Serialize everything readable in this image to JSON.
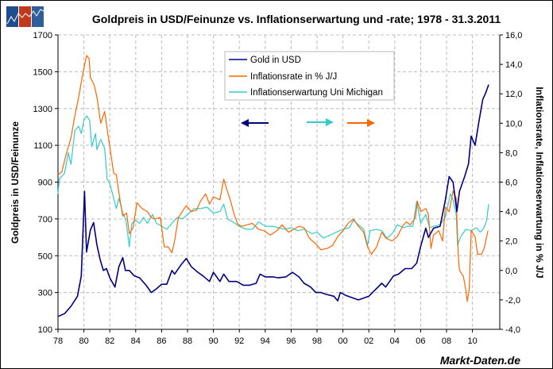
{
  "logo": {
    "text": "Markt-Daten.de logo",
    "colors": [
      "#1f4e8c",
      "#c0391b",
      "#2f5f9a"
    ]
  },
  "watermark": "Markt-Daten.de",
  "chart_data": {
    "type": "line",
    "title": "Goldpreis in USD/Feinunze vs. Inflationserwartung und -rate; 1978 - 31.3.2011",
    "xlabel": "",
    "ylabel_left": "Goldpreis in USD/Feinunze",
    "ylabel_right": "Inflationsrate, Inflationserwartung in % J/J",
    "xlim": [
      1978,
      2012
    ],
    "ylim_left": [
      100,
      1700
    ],
    "ylim_right": [
      -4,
      16
    ],
    "x_ticks": [
      "78",
      "80",
      "82",
      "84",
      "86",
      "88",
      "90",
      "92",
      "94",
      "96",
      "98",
      "00",
      "02",
      "04",
      "06",
      "08",
      "10"
    ],
    "y_ticks_left": [
      "100",
      "300",
      "500",
      "700",
      "900",
      "1100",
      "1300",
      "1500",
      "1700"
    ],
    "y_ticks_right": [
      "-4,0",
      "-2,0",
      "0,0",
      "2,0",
      "4,0",
      "6,0",
      "8,0",
      "10,0",
      "12,0",
      "14,0",
      "16,0"
    ],
    "grid": true,
    "legend_position": "top-center",
    "series": [
      {
        "name": "Gold in USD",
        "axis": "left",
        "color": "#000080",
        "arrow": "left",
        "points": [
          [
            1978.0,
            170
          ],
          [
            1978.5,
            185
          ],
          [
            1979.0,
            225
          ],
          [
            1979.5,
            280
          ],
          [
            1979.8,
            390
          ],
          [
            1980.05,
            850
          ],
          [
            1980.2,
            520
          ],
          [
            1980.5,
            640
          ],
          [
            1980.75,
            680
          ],
          [
            1981.0,
            560
          ],
          [
            1981.25,
            480
          ],
          [
            1981.5,
            420
          ],
          [
            1981.75,
            430
          ],
          [
            1982.0,
            380
          ],
          [
            1982.4,
            330
          ],
          [
            1982.7,
            440
          ],
          [
            1983.0,
            490
          ],
          [
            1983.2,
            420
          ],
          [
            1983.5,
            420
          ],
          [
            1983.9,
            390
          ],
          [
            1984.3,
            380
          ],
          [
            1984.8,
            340
          ],
          [
            1985.2,
            300
          ],
          [
            1985.6,
            320
          ],
          [
            1986.0,
            345
          ],
          [
            1986.4,
            345
          ],
          [
            1986.8,
            420
          ],
          [
            1987.0,
            400
          ],
          [
            1987.5,
            450
          ],
          [
            1987.9,
            485
          ],
          [
            1988.3,
            440
          ],
          [
            1988.8,
            410
          ],
          [
            1989.2,
            390
          ],
          [
            1989.7,
            360
          ],
          [
            1990.0,
            410
          ],
          [
            1990.5,
            360
          ],
          [
            1990.8,
            400
          ],
          [
            1991.2,
            360
          ],
          [
            1991.8,
            360
          ],
          [
            1992.3,
            340
          ],
          [
            1992.8,
            340
          ],
          [
            1993.3,
            350
          ],
          [
            1993.6,
            400
          ],
          [
            1994.0,
            385
          ],
          [
            1994.6,
            385
          ],
          [
            1995.0,
            380
          ],
          [
            1995.6,
            385
          ],
          [
            1996.1,
            410
          ],
          [
            1996.6,
            385
          ],
          [
            1997.0,
            350
          ],
          [
            1997.5,
            330
          ],
          [
            1997.9,
            300
          ],
          [
            1998.3,
            300
          ],
          [
            1998.7,
            290
          ],
          [
            1999.3,
            280
          ],
          [
            1999.6,
            255
          ],
          [
            1999.8,
            300
          ],
          [
            2000.2,
            285
          ],
          [
            2000.8,
            270
          ],
          [
            2001.2,
            260
          ],
          [
            2001.6,
            270
          ],
          [
            2002.0,
            280
          ],
          [
            2002.5,
            315
          ],
          [
            2003.0,
            350
          ],
          [
            2003.3,
            330
          ],
          [
            2003.9,
            390
          ],
          [
            2004.3,
            400
          ],
          [
            2004.8,
            430
          ],
          [
            2005.3,
            430
          ],
          [
            2005.7,
            460
          ],
          [
            2006.0,
            550
          ],
          [
            2006.4,
            650
          ],
          [
            2006.6,
            600
          ],
          [
            2007.0,
            650
          ],
          [
            2007.5,
            660
          ],
          [
            2007.9,
            800
          ],
          [
            2008.2,
            930
          ],
          [
            2008.5,
            900
          ],
          [
            2008.8,
            740
          ],
          [
            2009.0,
            850
          ],
          [
            2009.4,
            930
          ],
          [
            2009.7,
            1000
          ],
          [
            2009.9,
            1150
          ],
          [
            2010.2,
            1100
          ],
          [
            2010.5,
            1230
          ],
          [
            2010.8,
            1350
          ],
          [
            2011.0,
            1380
          ],
          [
            2011.25,
            1430
          ]
        ]
      },
      {
        "name": "Inflationsrate in % J/J",
        "axis": "right",
        "color": "#ff6600",
        "arrow": "right",
        "points": [
          [
            1978.0,
            6.5
          ],
          [
            1978.3,
            6.7
          ],
          [
            1978.6,
            7.8
          ],
          [
            1979.0,
            9.0
          ],
          [
            1979.3,
            10.5
          ],
          [
            1979.6,
            11.8
          ],
          [
            1979.9,
            13.3
          ],
          [
            1980.2,
            14.6
          ],
          [
            1980.4,
            14.4
          ],
          [
            1980.5,
            13.1
          ],
          [
            1980.8,
            12.6
          ],
          [
            1981.0,
            11.8
          ],
          [
            1981.3,
            10.0
          ],
          [
            1981.6,
            10.8
          ],
          [
            1981.8,
            9.6
          ],
          [
            1982.0,
            8.4
          ],
          [
            1982.3,
            6.6
          ],
          [
            1982.5,
            6.5
          ],
          [
            1982.75,
            5.0
          ],
          [
            1983.0,
            3.7
          ],
          [
            1983.3,
            3.9
          ],
          [
            1983.5,
            2.5
          ],
          [
            1983.8,
            2.9
          ],
          [
            1984.1,
            4.6
          ],
          [
            1984.5,
            4.2
          ],
          [
            1984.9,
            4.0
          ],
          [
            1985.2,
            3.6
          ],
          [
            1985.5,
            3.5
          ],
          [
            1985.9,
            3.6
          ],
          [
            1986.2,
            1.6
          ],
          [
            1986.5,
            1.6
          ],
          [
            1986.8,
            1.2
          ],
          [
            1987.0,
            2.0
          ],
          [
            1987.3,
            3.6
          ],
          [
            1987.6,
            4.0
          ],
          [
            1987.9,
            4.4
          ],
          [
            1988.3,
            4.0
          ],
          [
            1988.7,
            4.1
          ],
          [
            1989.0,
            4.7
          ],
          [
            1989.4,
            5.2
          ],
          [
            1989.7,
            4.5
          ],
          [
            1990.0,
            5.0
          ],
          [
            1990.5,
            4.8
          ],
          [
            1990.8,
            6.2
          ],
          [
            1991.0,
            5.6
          ],
          [
            1991.3,
            4.8
          ],
          [
            1991.6,
            3.8
          ],
          [
            1991.9,
            3.1
          ],
          [
            1992.2,
            3.0
          ],
          [
            1992.6,
            3.1
          ],
          [
            1993.0,
            3.2
          ],
          [
            1993.5,
            2.8
          ],
          [
            1993.9,
            2.7
          ],
          [
            1994.4,
            2.4
          ],
          [
            1994.9,
            2.7
          ],
          [
            1995.3,
            3.1
          ],
          [
            1995.8,
            2.6
          ],
          [
            1996.2,
            2.8
          ],
          [
            1996.6,
            3.0
          ],
          [
            1997.0,
            2.9
          ],
          [
            1997.4,
            2.2
          ],
          [
            1997.9,
            1.8
          ],
          [
            1998.3,
            1.4
          ],
          [
            1998.8,
            1.5
          ],
          [
            1999.2,
            1.7
          ],
          [
            1999.6,
            2.3
          ],
          [
            2000.0,
            2.7
          ],
          [
            2000.4,
            3.2
          ],
          [
            2000.8,
            3.5
          ],
          [
            2001.2,
            3.0
          ],
          [
            2001.6,
            2.6
          ],
          [
            2001.9,
            1.6
          ],
          [
            2002.2,
            1.1
          ],
          [
            2002.6,
            1.6
          ],
          [
            2003.0,
            2.6
          ],
          [
            2003.3,
            2.2
          ],
          [
            2003.8,
            2.0
          ],
          [
            2004.2,
            2.3
          ],
          [
            2004.6,
            3.0
          ],
          [
            2004.9,
            3.3
          ],
          [
            2005.2,
            3.1
          ],
          [
            2005.6,
            3.6
          ],
          [
            2005.75,
            4.7
          ],
          [
            2006.0,
            4.0
          ],
          [
            2006.4,
            4.2
          ],
          [
            2006.6,
            3.8
          ],
          [
            2006.8,
            1.5
          ],
          [
            2007.0,
            2.4
          ],
          [
            2007.4,
            2.7
          ],
          [
            2007.7,
            2.0
          ],
          [
            2007.9,
            4.3
          ],
          [
            2008.2,
            4.0
          ],
          [
            2008.5,
            5.4
          ],
          [
            2008.75,
            4.9
          ],
          [
            2008.9,
            1.1
          ],
          [
            2009.0,
            0.0
          ],
          [
            2009.3,
            -0.4
          ],
          [
            2009.5,
            -1.4
          ],
          [
            2009.6,
            -2.1
          ],
          [
            2009.75,
            -1.3
          ],
          [
            2009.9,
            2.7
          ],
          [
            2010.2,
            2.3
          ],
          [
            2010.4,
            1.1
          ],
          [
            2010.7,
            1.1
          ],
          [
            2010.9,
            1.5
          ],
          [
            2011.2,
            2.7
          ]
        ]
      },
      {
        "name": "Inflationserwartung Uni Michigan",
        "axis": "right",
        "color": "#33cccc",
        "arrow": "right",
        "points": [
          [
            1978.0,
            5.2
          ],
          [
            1978.1,
            6.2
          ],
          [
            1978.5,
            6.6
          ],
          [
            1978.8,
            8.0
          ],
          [
            1979.0,
            7.2
          ],
          [
            1979.3,
            9.5
          ],
          [
            1979.6,
            9.8
          ],
          [
            1979.8,
            9.3
          ],
          [
            1980.0,
            10.2
          ],
          [
            1980.2,
            10.5
          ],
          [
            1980.45,
            10.2
          ],
          [
            1980.6,
            8.4
          ],
          [
            1980.9,
            9.3
          ],
          [
            1981.0,
            8.2
          ],
          [
            1981.3,
            8.9
          ],
          [
            1981.6,
            8.3
          ],
          [
            1981.8,
            6.2
          ],
          [
            1982.0,
            5.9
          ],
          [
            1982.3,
            4.9
          ],
          [
            1982.5,
            4.2
          ],
          [
            1982.7,
            4.9
          ],
          [
            1983.0,
            3.9
          ],
          [
            1983.25,
            3.4
          ],
          [
            1983.5,
            1.6
          ],
          [
            1983.7,
            3.2
          ],
          [
            1984.0,
            3.4
          ],
          [
            1984.3,
            3.2
          ],
          [
            1984.6,
            3.6
          ],
          [
            1984.9,
            3.2
          ],
          [
            1985.3,
            3.8
          ],
          [
            1985.6,
            3.2
          ],
          [
            1986.0,
            3.0
          ],
          [
            1986.4,
            2.8
          ],
          [
            1986.8,
            3.2
          ],
          [
            1987.2,
            3.6
          ],
          [
            1987.6,
            3.5
          ],
          [
            1988.0,
            3.8
          ],
          [
            1988.5,
            4.2
          ],
          [
            1989.0,
            4.2
          ],
          [
            1989.5,
            4.3
          ],
          [
            1990.0,
            3.9
          ],
          [
            1990.5,
            4.0
          ],
          [
            1990.8,
            4.5
          ],
          [
            1991.1,
            3.5
          ],
          [
            1991.5,
            3.3
          ],
          [
            1992.0,
            3.0
          ],
          [
            1992.5,
            2.8
          ],
          [
            1993.0,
            2.8
          ],
          [
            1993.5,
            3.3
          ],
          [
            1994.0,
            3.0
          ],
          [
            1994.6,
            3.0
          ],
          [
            1995.0,
            2.9
          ],
          [
            1995.5,
            2.8
          ],
          [
            1996.0,
            2.9
          ],
          [
            1996.5,
            2.7
          ],
          [
            1997.0,
            2.8
          ],
          [
            1997.6,
            2.5
          ],
          [
            1998.0,
            2.6
          ],
          [
            1998.5,
            2.2
          ],
          [
            1999.0,
            2.4
          ],
          [
            1999.5,
            2.6
          ],
          [
            2000.0,
            2.8
          ],
          [
            2000.5,
            2.9
          ],
          [
            2000.8,
            3.4
          ],
          [
            2001.2,
            3.1
          ],
          [
            2001.6,
            2.8
          ],
          [
            2001.9,
            1.7
          ],
          [
            2002.1,
            2.7
          ],
          [
            2002.6,
            2.8
          ],
          [
            2003.0,
            2.7
          ],
          [
            2003.4,
            2.2
          ],
          [
            2003.8,
            2.5
          ],
          [
            2004.2,
            3.1
          ],
          [
            2004.7,
            2.9
          ],
          [
            2005.0,
            3.0
          ],
          [
            2005.4,
            3.0
          ],
          [
            2005.7,
            4.7
          ],
          [
            2006.0,
            3.2
          ],
          [
            2006.4,
            3.8
          ],
          [
            2006.7,
            2.9
          ],
          [
            2007.0,
            3.0
          ],
          [
            2007.5,
            3.1
          ],
          [
            2007.9,
            3.6
          ],
          [
            2008.3,
            5.2
          ],
          [
            2008.5,
            4.8
          ],
          [
            2008.75,
            3.8
          ],
          [
            2008.85,
            1.7
          ],
          [
            2009.1,
            2.3
          ],
          [
            2009.5,
            2.8
          ],
          [
            2009.9,
            2.7
          ],
          [
            2010.3,
            2.9
          ],
          [
            2010.6,
            2.6
          ],
          [
            2010.9,
            2.9
          ],
          [
            2011.1,
            3.4
          ],
          [
            2011.25,
            4.5
          ]
        ]
      }
    ]
  }
}
